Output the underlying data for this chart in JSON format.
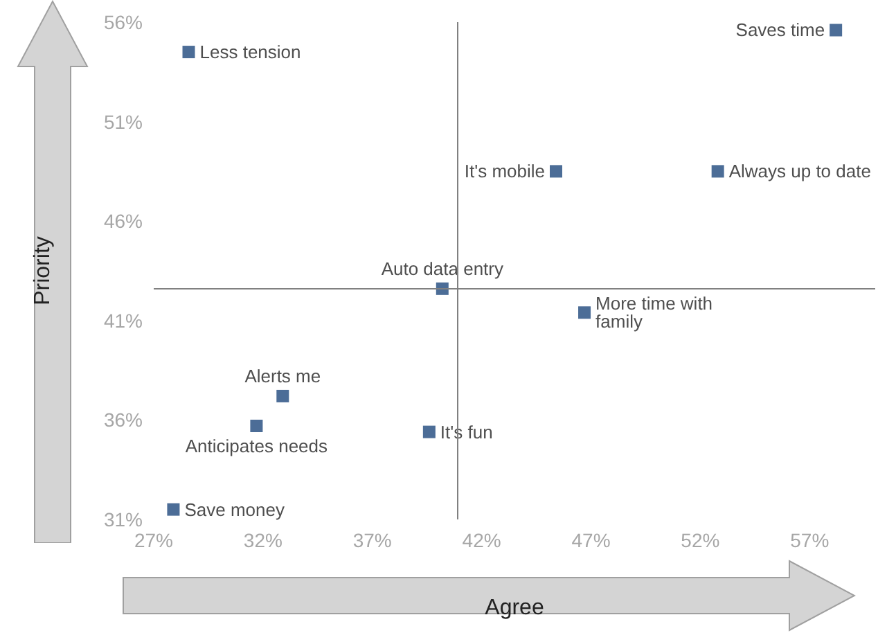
{
  "chart_data": {
    "type": "scatter",
    "xlabel": "Agree",
    "ylabel": "Priority",
    "series": [
      {
        "color": "#1f497d",
        "x": [
          28.6,
          58.2,
          45.4,
          52.8,
          40.2,
          46.7,
          32.9,
          31.7,
          39.6,
          27.9
        ],
        "values": [
          54.5,
          55.6,
          48.5,
          48.5,
          42.6,
          41.4,
          37.2,
          35.7,
          35.4,
          31.5
        ]
      }
    ],
    "annotations": [
      {
        "text": "Less tension",
        "x": 28.6,
        "y": 54.5
      },
      {
        "text": "Saves time",
        "x": 58.2,
        "y": 55.6
      },
      {
        "text": "It's mobile",
        "x": 45.4,
        "y": 48.5
      },
      {
        "text": "Always up to date",
        "x": 52.8,
        "y": 48.5
      },
      {
        "text": "Auto data entry",
        "x": 40.2,
        "y": 42.6
      },
      {
        "text": "More time with family",
        "x": 46.7,
        "y": 41.4
      },
      {
        "text": "Alerts me",
        "x": 32.9,
        "y": 37.2
      },
      {
        "text": "Anticipates needs",
        "x": 31.7,
        "y": 35.7
      },
      {
        "text": "It's fun",
        "x": 39.6,
        "y": 35.4
      },
      {
        "text": "Save money",
        "x": 27.9,
        "y": 31.5
      }
    ],
    "ref_lines": [
      {
        "axis": "x",
        "value": 40.9,
        "color": "#808080"
      },
      {
        "axis": "y",
        "value": 42.6,
        "color": "#808080"
      }
    ],
    "xlim": [
      27,
      60
    ],
    "xticks": [
      {
        "value": 27,
        "label": "27%"
      },
      {
        "value": 32,
        "label": "32%"
      },
      {
        "value": 37,
        "label": "37%"
      },
      {
        "value": 42,
        "label": "42%"
      },
      {
        "value": 47,
        "label": "47%"
      },
      {
        "value": 52,
        "label": "52%"
      },
      {
        "value": 57,
        "label": "57%"
      }
    ],
    "ylim": [
      31,
      56
    ],
    "yticks": [
      {
        "value": 31,
        "label": "31%"
      },
      {
        "value": 36,
        "label": "36%"
      },
      {
        "value": 41,
        "label": "41%"
      },
      {
        "value": 46,
        "label": "46%"
      },
      {
        "value": 51,
        "label": "51%"
      },
      {
        "value": 56,
        "label": "56%"
      }
    ],
    "marker": "square",
    "grid": false
  }
}
